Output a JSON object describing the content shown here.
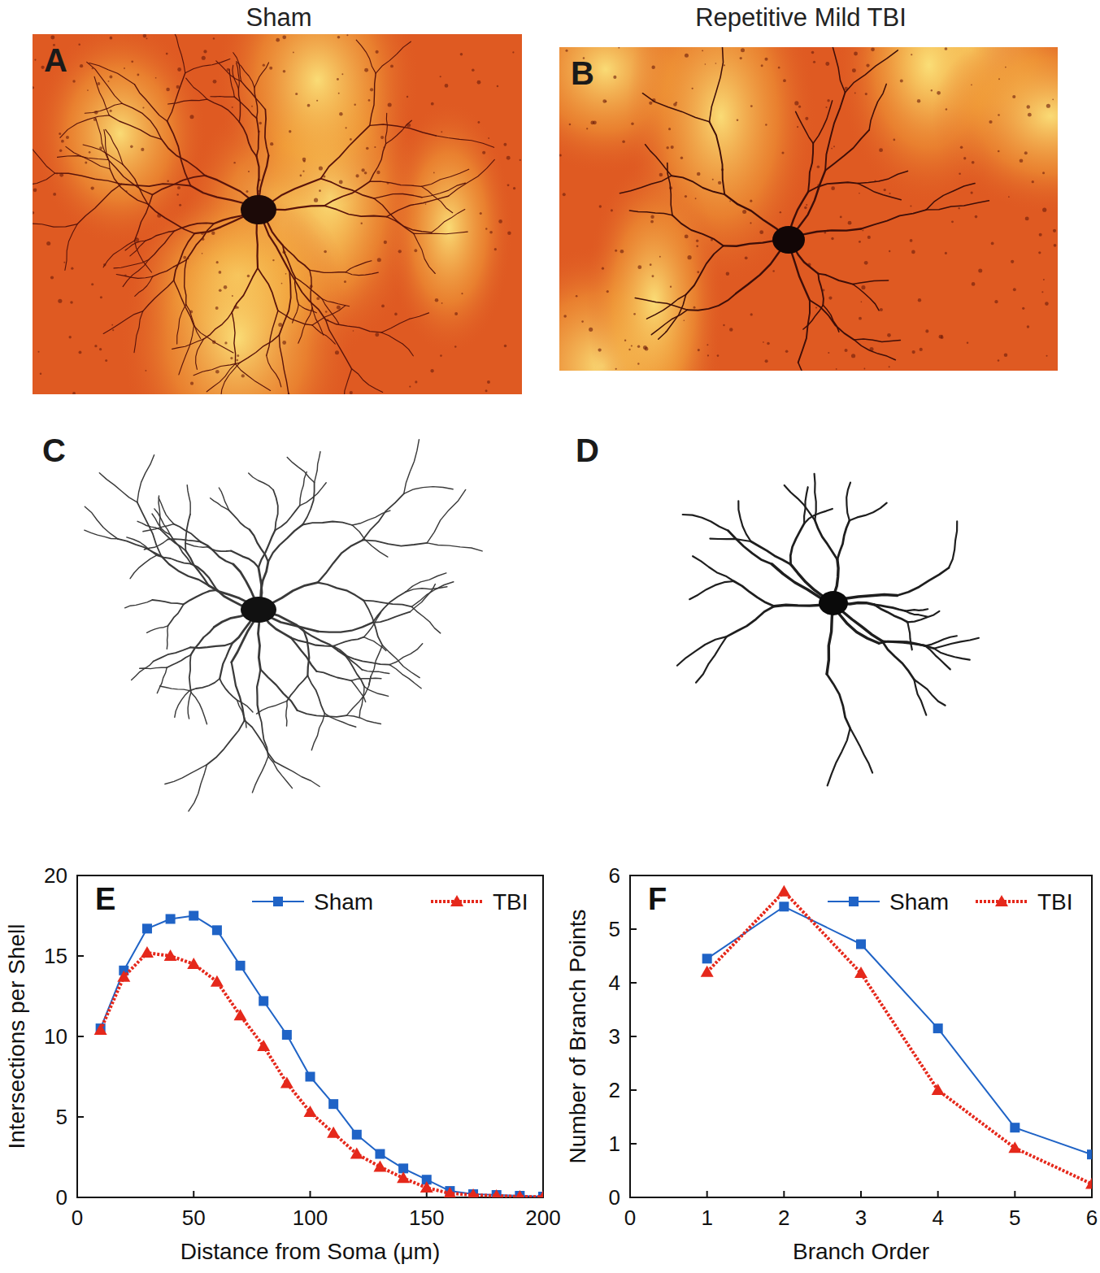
{
  "figure": {
    "column_titles": [
      "Sham",
      "Repetitive Mild TBI"
    ],
    "panel_labels": [
      "A",
      "B",
      "C",
      "D"
    ]
  },
  "chart_data": [
    {
      "type": "line",
      "title": "E",
      "x_label": "Distance from Soma (μm)",
      "y_label": "Intersections per Shell",
      "x": [
        10,
        20,
        30,
        40,
        50,
        60,
        70,
        80,
        90,
        100,
        110,
        120,
        130,
        140,
        150,
        160,
        170,
        180,
        190,
        200
      ],
      "series": [
        {
          "name": "Sham",
          "color": "#1f63c6",
          "marker": "square",
          "line_style": "solid",
          "values": [
            10.5,
            14.1,
            16.7,
            17.3,
            17.5,
            16.6,
            14.4,
            12.2,
            10.1,
            7.5,
            5.8,
            3.9,
            2.7,
            1.8,
            1.1,
            0.4,
            0.2,
            0.15,
            0.1,
            0.05
          ]
        },
        {
          "name": "TBI",
          "color": "#e5281b",
          "marker": "triangle",
          "line_style": "dotted",
          "values": [
            10.4,
            13.7,
            15.2,
            15.0,
            14.5,
            13.4,
            11.3,
            9.4,
            7.1,
            5.3,
            4.0,
            2.7,
            1.9,
            1.2,
            0.6,
            0.25,
            0.15,
            0.1,
            0.05,
            0.03
          ]
        }
      ],
      "xlim": [
        0,
        200
      ],
      "xticks": [
        0,
        50,
        100,
        150,
        200
      ],
      "ylim": [
        0,
        20
      ],
      "yticks": [
        0,
        5,
        10,
        15,
        20
      ],
      "grid": false,
      "legend": "upper right"
    },
    {
      "type": "line",
      "title": "F",
      "x_label": "Branch Order",
      "y_label": "Number of Branch Points",
      "x": [
        1,
        2,
        3,
        4,
        5,
        6
      ],
      "series": [
        {
          "name": "Sham",
          "color": "#1f63c6",
          "marker": "square",
          "line_style": "solid",
          "values": [
            4.45,
            5.42,
            4.72,
            3.15,
            1.3,
            0.8
          ]
        },
        {
          "name": "TBI",
          "color": "#e5281b",
          "marker": "triangle",
          "line_style": "dotted",
          "values": [
            4.2,
            5.7,
            4.18,
            2.0,
            0.92,
            0.25
          ]
        }
      ],
      "xlim": [
        0,
        6
      ],
      "xticks": [
        0,
        1,
        2,
        3,
        4,
        5,
        6
      ],
      "ylim": [
        0,
        6
      ],
      "yticks": [
        0,
        1,
        2,
        3,
        4,
        5,
        6
      ],
      "grid": false,
      "legend": "upper right"
    }
  ]
}
